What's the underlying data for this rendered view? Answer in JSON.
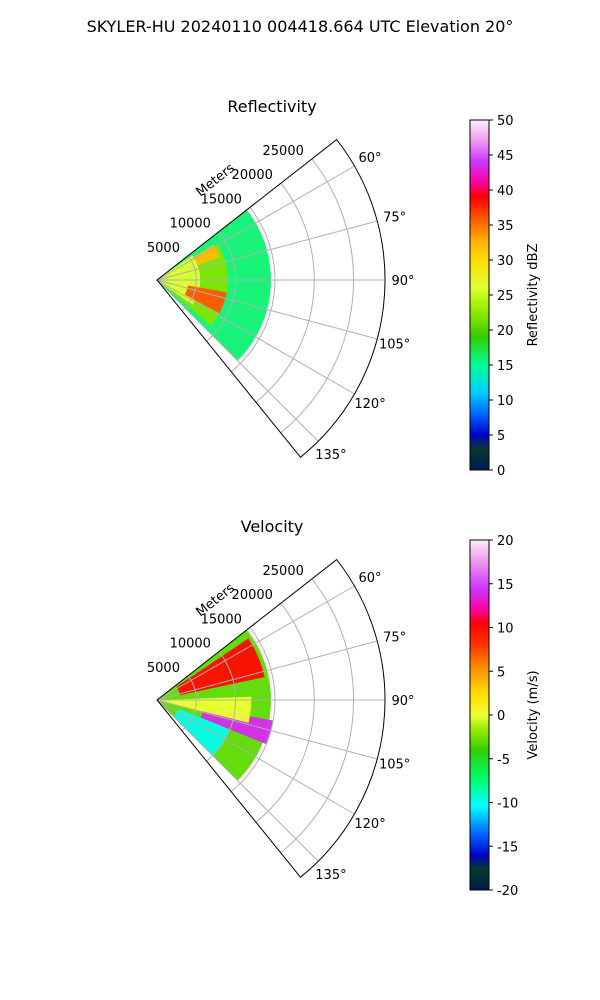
{
  "figure": {
    "suptitle": "SKYLER-HU  20240110  004418.664 UTC Elevation 20°"
  },
  "chart_data": [
    {
      "type": "heatmap",
      "projection": "polar-sector",
      "title": "Reflectivity",
      "range_label": "Meters",
      "range_ticks": [
        "5000",
        "10000",
        "15000",
        "20000",
        "25000"
      ],
      "angle_ticks": [
        "60°",
        "75°",
        "90°",
        "105°",
        "120°",
        "135°"
      ],
      "azimuth_range_deg": [
        52,
        141
      ],
      "range_max_m": 29000,
      "grid": true,
      "colorbar": {
        "label": "Reflectivity dBZ",
        "vmin": 0,
        "vmax": 50,
        "ticks": [
          "0",
          "5",
          "10",
          "15",
          "20",
          "25",
          "30",
          "35",
          "40",
          "45",
          "50"
        ]
      },
      "echo_regions": [
        {
          "az_from": 52,
          "az_to": 135,
          "range_from_m": 0,
          "range_to_m": 14500,
          "dbz": 16
        },
        {
          "az_from": 60,
          "az_to": 130,
          "range_from_m": 0,
          "range_to_m": 9000,
          "dbz": 22
        },
        {
          "az_from": 55,
          "az_to": 125,
          "range_from_m": 0,
          "range_to_m": 5500,
          "dbz": 26
        },
        {
          "az_from": 100,
          "az_to": 118,
          "range_from_m": 4000,
          "range_to_m": 9000,
          "dbz": 36
        },
        {
          "az_from": 58,
          "az_to": 70,
          "range_from_m": 5500,
          "range_to_m": 8500,
          "dbz": 32
        }
      ]
    },
    {
      "type": "heatmap",
      "projection": "polar-sector",
      "title": "Velocity",
      "range_label": "Meters",
      "range_ticks": [
        "5000",
        "10000",
        "15000",
        "20000",
        "25000"
      ],
      "angle_ticks": [
        "60°",
        "75°",
        "90°",
        "105°",
        "120°",
        "135°"
      ],
      "azimuth_range_deg": [
        52,
        141
      ],
      "range_max_m": 29000,
      "grid": true,
      "colorbar": {
        "label": "Velocity (m/s)",
        "vmin": -20,
        "vmax": 20,
        "ticks": [
          "-20",
          "-15",
          "-10",
          "-5",
          "0",
          "5",
          "10",
          "15",
          "20"
        ]
      },
      "echo_regions": [
        {
          "az_from": 52,
          "az_to": 135,
          "range_from_m": 0,
          "range_to_m": 14500,
          "ms": -3
        },
        {
          "az_from": 56,
          "az_to": 78,
          "range_from_m": 3000,
          "range_to_m": 14000,
          "ms": 10
        },
        {
          "az_from": 100,
          "az_to": 112,
          "range_from_m": 6000,
          "range_to_m": 15000,
          "ms": 14
        },
        {
          "az_from": 112,
          "az_to": 135,
          "range_from_m": 3000,
          "range_to_m": 10000,
          "ms": -10
        },
        {
          "az_from": 88,
          "az_to": 104,
          "range_from_m": 0,
          "range_to_m": 12000,
          "ms": 0
        }
      ]
    }
  ]
}
